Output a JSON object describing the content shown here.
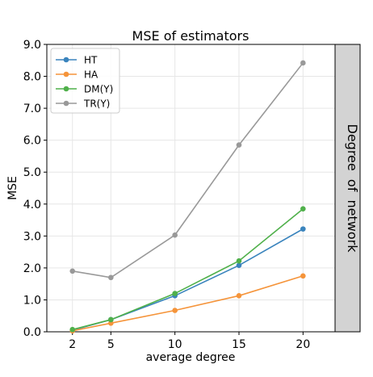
{
  "chart_data": {
    "type": "line",
    "title": "MSE of estimators",
    "xlabel": "average degree",
    "ylabel": "MSE",
    "facet_label": "Degree  of  network",
    "x": [
      2,
      5,
      10,
      15,
      20
    ],
    "xticks": [
      "2",
      "5",
      "10",
      "15",
      "20"
    ],
    "xlim": [
      0,
      22.5
    ],
    "ylim": [
      0,
      9
    ],
    "yticks": [
      "0.0",
      "1.0",
      "2.0",
      "3.0",
      "4.0",
      "5.0",
      "6.0",
      "7.0",
      "8.0",
      "9.0"
    ],
    "grid": true,
    "legend_position": "top-left",
    "series": [
      {
        "name": "HT",
        "color": "#3a84bd",
        "values": [
          0.05,
          0.38,
          1.13,
          2.08,
          3.22
        ]
      },
      {
        "name": "HA",
        "color": "#f5943a",
        "values": [
          0.03,
          0.27,
          0.67,
          1.13,
          1.75
        ]
      },
      {
        "name": "DM(Y)",
        "color": "#4fb04a",
        "values": [
          0.07,
          0.38,
          1.2,
          2.22,
          3.85
        ]
      },
      {
        "name": "TR(Y)",
        "color": "#999999",
        "values": [
          1.9,
          1.7,
          3.03,
          5.85,
          8.42
        ]
      }
    ]
  }
}
